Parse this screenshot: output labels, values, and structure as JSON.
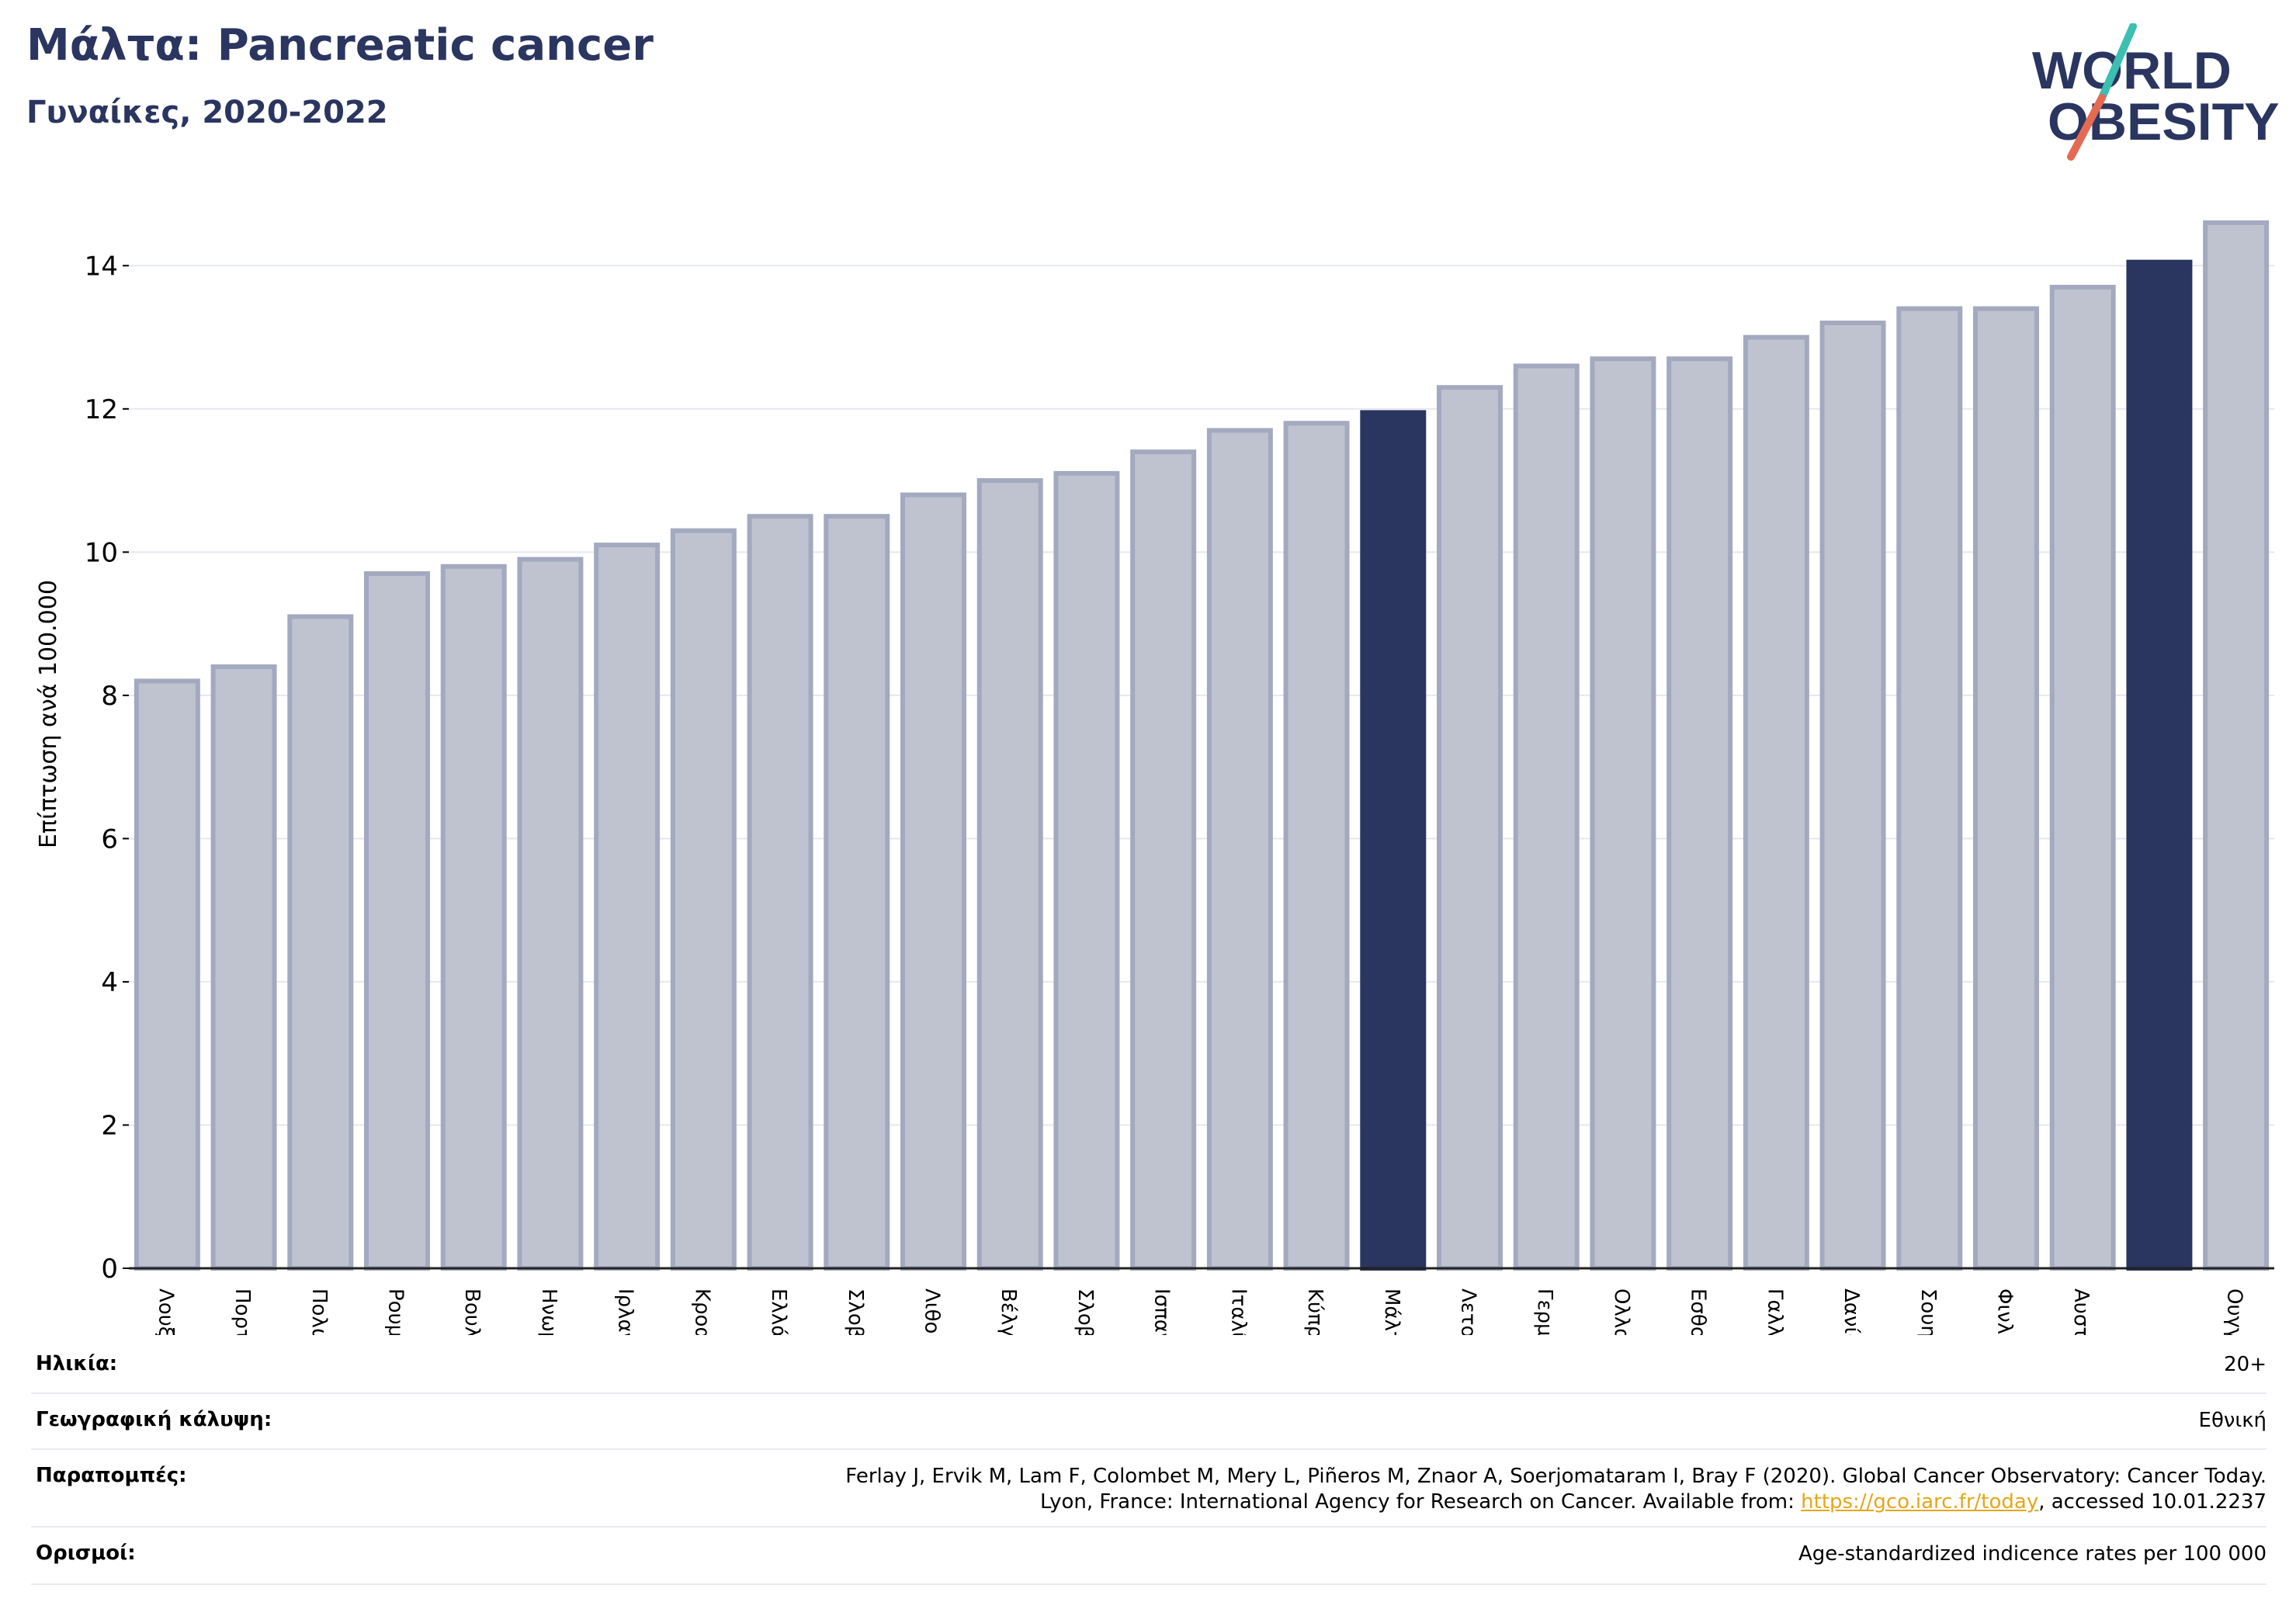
{
  "header": {
    "title": "Μάλτα: Pancreatic cancer",
    "subtitle": "Γυναίκες, 2020-2022"
  },
  "logo": {
    "line1": "WORLD",
    "line2": "OBESITY"
  },
  "colors": {
    "bar_default": "#bfc3d0",
    "bar_default_border": "#a3a9bf",
    "bar_highlight": "#2a3560",
    "text_dark": "#2a3560",
    "grid": "#e6e8ef",
    "logo_teal": "#3bbfb0",
    "logo_coral": "#e56a54",
    "link": "#e3a818"
  },
  "chart_data": {
    "type": "bar",
    "ylabel": "Επίπτωση ανά 100.000",
    "ylim": [
      0,
      15
    ],
    "yticks": [
      0,
      2,
      4,
      6,
      8,
      10,
      12,
      14
    ],
    "grid": true,
    "categories": [
      "Λουξεμβούργο",
      "Πορτογαλία",
      "Πολωνία",
      "Ρουμανία",
      "Βουλγαρία",
      "Ηνωμένο Βασίλειο",
      "Ιρλανδία",
      "Κροατία",
      "Ελλάδα",
      "Σλοβενία",
      "Λιθουανία",
      "Βέλγιο",
      "Σλοβακία",
      "Ισπανία",
      "Ιταλία",
      "Κύπρος",
      "Μάλτα",
      "Λετονία",
      "Γερμανία",
      "Ολλανδία",
      "Εσθονία",
      "Γαλλία",
      "Δανία",
      "Σουηδία",
      "Φινλανδία",
      "Αυστρία",
      "",
      "Ουγγαρία"
    ],
    "values": [
      8.2,
      8.4,
      9.1,
      9.7,
      9.8,
      9.9,
      10.1,
      10.3,
      10.5,
      10.5,
      10.8,
      11.0,
      11.1,
      11.4,
      11.7,
      11.8,
      11.95,
      12.3,
      12.6,
      12.7,
      12.7,
      13.0,
      13.2,
      13.4,
      13.4,
      13.7,
      14.05,
      14.6
    ],
    "highlight": [
      "Μάλτα",
      ""
    ]
  },
  "info": {
    "age_label": "Ηλικία:",
    "age_value": "20+",
    "geo_label": "Γεωγραφική κάλυψη:",
    "geo_value": "Εθνική",
    "refs_label": "Παραπομπές:",
    "refs_line1": "Ferlay J, Ervik M, Lam F, Colombet M, Mery L, Piñeros M, Znaor A, Soerjomataram I, Bray F (2020). Global Cancer Observatory: Cancer Today.",
    "refs_line2_prefix": "Lyon, France: International Agency for Research on Cancer. Available from: ",
    "refs_link": "https://gco.iarc.fr/today",
    "refs_line2_suffix": ", accessed 10.01.2237",
    "defs_label": "Ορισμοί:",
    "defs_value": "Age-standardized indicence rates per 100 000"
  }
}
